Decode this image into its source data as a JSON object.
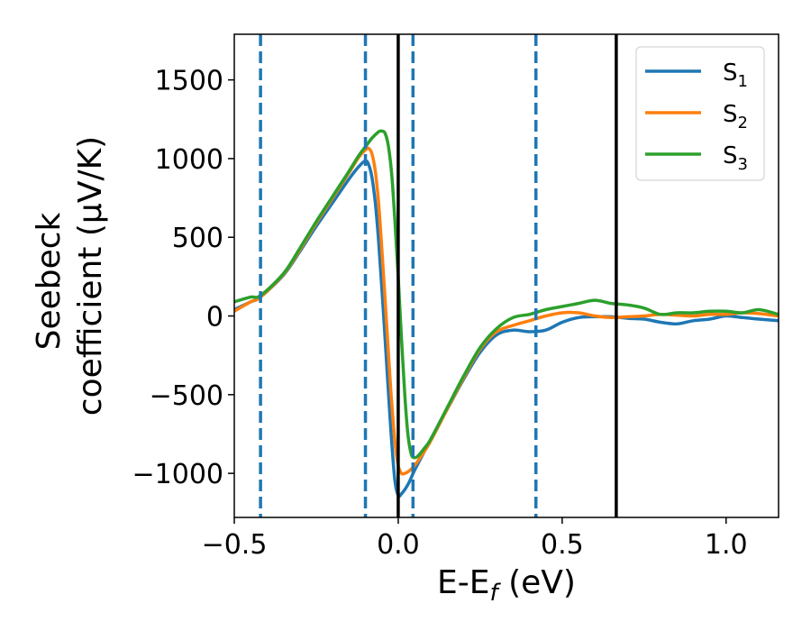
{
  "chart_data": {
    "type": "line",
    "title": "",
    "xlabel": {
      "main": "E-E",
      "sub": "f",
      "unit": " (eV)"
    },
    "ylabel": {
      "line1": "Seebeck",
      "line2": "coefficient  (μV/K)"
    },
    "xlim": [
      -0.5,
      1.16
    ],
    "ylim": [
      -1280,
      1790
    ],
    "xticks": [
      -0.5,
      0.0,
      0.5,
      1.0
    ],
    "xtick_labels": [
      "−0.5",
      "0.0",
      "0.5",
      "1.0"
    ],
    "yticks": [
      -1000,
      -500,
      0,
      500,
      1000,
      1500
    ],
    "ytick_labels": [
      "−1000",
      "−500",
      "0",
      "500",
      "1000",
      "1500"
    ],
    "grid": false,
    "legend_position": "top-right",
    "vlines_dashed": [
      -0.42,
      -0.1,
      0.045,
      0.42
    ],
    "vlines_solid": [
      0.0,
      0.665
    ],
    "colors": {
      "s1": "#1f77b4",
      "s2": "#ff7f0e",
      "s3": "#2ca02c",
      "dashed": "#1f77b4",
      "solid": "#000000"
    },
    "series": [
      {
        "key": "s1",
        "name": "S",
        "sub": "1",
        "color": "#1f77b4",
        "x": [
          -0.5,
          -0.45,
          -0.42,
          -0.35,
          -0.3,
          -0.25,
          -0.2,
          -0.15,
          -0.12,
          -0.1,
          -0.09,
          -0.08,
          -0.07,
          -0.06,
          -0.05,
          -0.04,
          -0.03,
          -0.02,
          -0.01,
          0.0,
          0.01,
          0.03,
          0.05,
          0.08,
          0.1,
          0.15,
          0.2,
          0.25,
          0.3,
          0.35,
          0.4,
          0.45,
          0.5,
          0.55,
          0.6,
          0.65,
          0.7,
          0.75,
          0.8,
          0.85,
          0.9,
          0.95,
          1.0,
          1.05,
          1.1,
          1.16
        ],
        "y": [
          40,
          90,
          120,
          260,
          410,
          570,
          720,
          870,
          950,
          985,
          960,
          880,
          720,
          480,
          180,
          -150,
          -480,
          -800,
          -1050,
          -1140,
          -1130,
          -1070,
          -980,
          -860,
          -780,
          -590,
          -400,
          -230,
          -120,
          -90,
          -100,
          -90,
          -40,
          -10,
          -5,
          -5,
          -15,
          -20,
          -40,
          -50,
          -30,
          -20,
          0,
          -10,
          -20,
          -30
        ]
      },
      {
        "key": "s2",
        "name": "S",
        "sub": "2",
        "color": "#ff7f0e",
        "x": [
          -0.5,
          -0.45,
          -0.42,
          -0.35,
          -0.3,
          -0.25,
          -0.2,
          -0.15,
          -0.12,
          -0.1,
          -0.09,
          -0.08,
          -0.07,
          -0.06,
          -0.05,
          -0.04,
          -0.03,
          -0.02,
          -0.01,
          0.0,
          0.01,
          0.02,
          0.03,
          0.05,
          0.08,
          0.1,
          0.15,
          0.2,
          0.25,
          0.3,
          0.35,
          0.4,
          0.45,
          0.5,
          0.55,
          0.6,
          0.65,
          0.7,
          0.75,
          0.8,
          0.85,
          0.9,
          0.95,
          1.0,
          1.05,
          1.1,
          1.16
        ],
        "y": [
          30,
          90,
          120,
          265,
          420,
          590,
          750,
          910,
          1010,
          1055,
          1065,
          1030,
          920,
          720,
          430,
          100,
          -230,
          -550,
          -800,
          -950,
          -1000,
          -1000,
          -990,
          -950,
          -860,
          -790,
          -590,
          -390,
          -210,
          -100,
          -60,
          -30,
          0,
          20,
          20,
          0,
          -10,
          -5,
          0,
          10,
          5,
          0,
          10,
          10,
          20,
          15,
          0
        ]
      },
      {
        "key": "s3",
        "name": "S",
        "sub": "3",
        "color": "#2ca02c",
        "x": [
          -0.5,
          -0.45,
          -0.42,
          -0.35,
          -0.3,
          -0.25,
          -0.2,
          -0.15,
          -0.12,
          -0.1,
          -0.08,
          -0.06,
          -0.05,
          -0.04,
          -0.03,
          -0.02,
          -0.01,
          0.0,
          0.01,
          0.02,
          0.03,
          0.04,
          0.05,
          0.06,
          0.08,
          0.1,
          0.15,
          0.2,
          0.25,
          0.3,
          0.35,
          0.4,
          0.45,
          0.5,
          0.55,
          0.6,
          0.65,
          0.7,
          0.75,
          0.8,
          0.85,
          0.9,
          0.95,
          1.0,
          1.05,
          1.1,
          1.16
        ],
        "y": [
          90,
          120,
          130,
          270,
          430,
          600,
          760,
          920,
          1020,
          1075,
          1130,
          1170,
          1175,
          1160,
          1080,
          900,
          600,
          250,
          -150,
          -500,
          -760,
          -880,
          -900,
          -890,
          -840,
          -780,
          -580,
          -380,
          -200,
          -80,
          -10,
          10,
          40,
          60,
          80,
          100,
          80,
          70,
          50,
          10,
          20,
          20,
          30,
          30,
          20,
          40,
          10
        ]
      }
    ]
  }
}
